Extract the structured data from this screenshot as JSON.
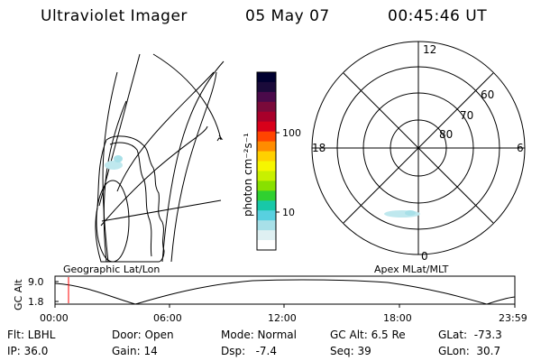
{
  "header": {
    "title": "Ultraviolet Imager",
    "date": "05 May 07",
    "time": "00:45:46 UT"
  },
  "colorbar": {
    "label": "photon cm⁻²s⁻¹",
    "ticks": [
      "100",
      "10"
    ],
    "colors": [
      "#000030",
      "#1a0a3a",
      "#4a0a4a",
      "#7a0a3a",
      "#a8002a",
      "#d8001a",
      "#ff4400",
      "#ff8c00",
      "#ffd000",
      "#f6f600",
      "#c8f000",
      "#88e000",
      "#30d030",
      "#18c8a8",
      "#58d0e0",
      "#a8e0e8",
      "#dff0f2",
      "#ffffff"
    ]
  },
  "geo_panel": {
    "label": "Geographic Lat/Lon"
  },
  "polar_panel": {
    "label": "Apex MLat/MLT",
    "mlt_labels": {
      "top": "12",
      "bottom": "0",
      "left": "18",
      "right": "6"
    },
    "mlat_labels": [
      "80",
      "70",
      "60"
    ]
  },
  "altitude_plot": {
    "ylabel": "GC Alt",
    "yticks": [
      "9.0",
      "1.8"
    ],
    "xticks": [
      "00:00",
      "06:00",
      "12:00",
      "18:00",
      "23:59"
    ]
  },
  "info": {
    "flt": "Flt: LBHL",
    "ip": "IP: 36.0",
    "door": "Door: Open",
    "gain": "Gain: 14",
    "mode": "Mode: Normal",
    "dsp": "Dsp:   -7.4",
    "gcalt": "GC Alt: 6.5 Re",
    "seq": "Seq: 39",
    "glat": "GLat:  -73.3",
    "glon": "GLon:  30.7"
  }
}
